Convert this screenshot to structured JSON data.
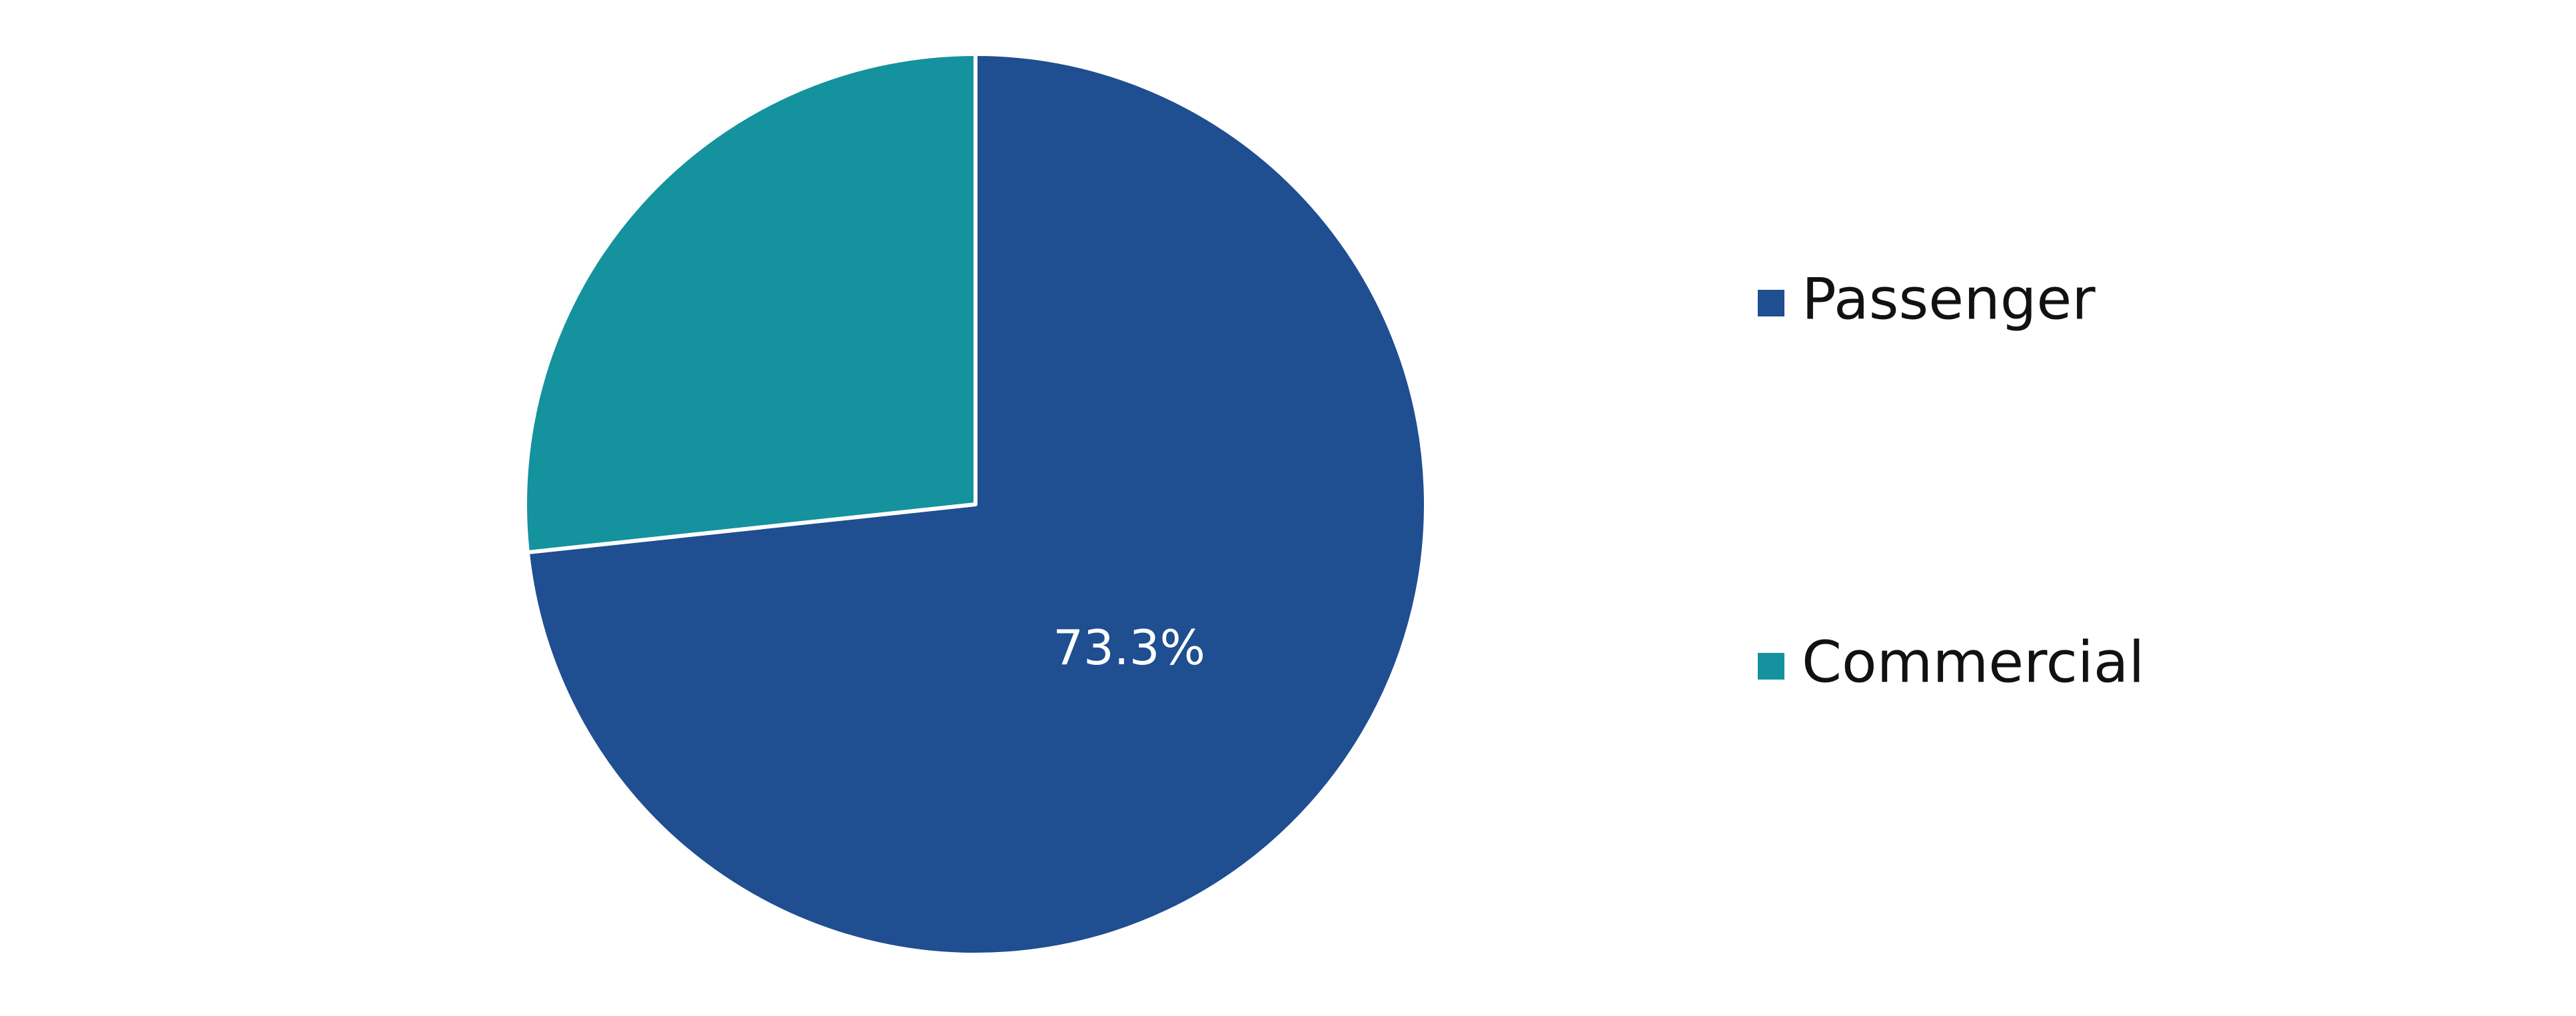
{
  "chart_data": {
    "type": "pie",
    "slices": [
      {
        "label": "Passenger",
        "value": 73.3,
        "color": "#1F4E91",
        "data_label": "73.3%"
      },
      {
        "label": "Commercial",
        "value": 26.7,
        "color": "#14929E",
        "data_label": ""
      }
    ],
    "legend": {
      "placement": "right",
      "entries": [
        "Passenger",
        "Commercial"
      ]
    },
    "start": "12 o'clock",
    "direction": "clockwise",
    "slice_border_color": "#FFFFFF"
  }
}
